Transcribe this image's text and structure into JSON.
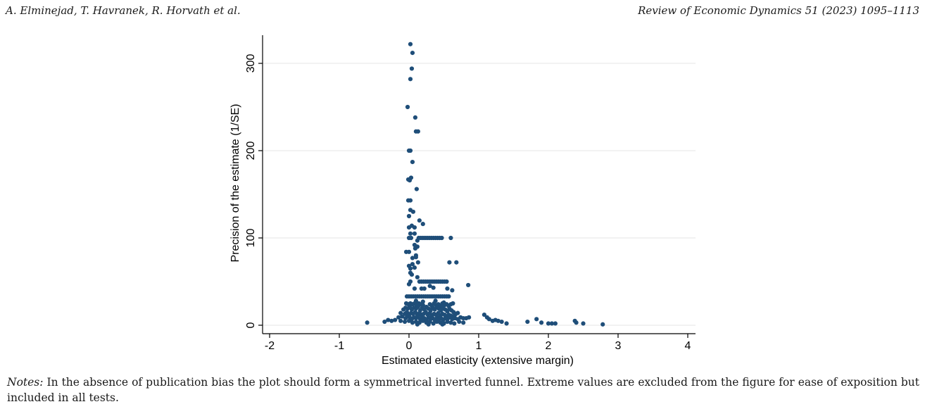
{
  "header": {
    "authors": "A. Elminejad, T. Havranek, R. Horvath et al.",
    "journal": "Review of Economic Dynamics 51 (2023) 1095–1113"
  },
  "notes": {
    "label": "Notes:",
    "text": "In the absence of publication bias the plot should form a symmetrical inverted funnel. Extreme values are excluded from the figure for ease of exposition but included in all tests."
  },
  "colors": {
    "points": "#1f4e79",
    "grid": "#e6e6e6",
    "axis": "#000000"
  },
  "chart_data": {
    "type": "scatter",
    "xlabel": "Estimated elasticity (extensive margin)",
    "ylabel": "Precision of the estimate (1/SE)",
    "xlim": [
      -2,
      4
    ],
    "ylim": [
      0,
      325
    ],
    "xticks": [
      "-2",
      "-1",
      "0",
      "1",
      "2",
      "3",
      "4"
    ],
    "yticks": [
      "0",
      "100",
      "200",
      "300"
    ],
    "grid": true,
    "points": [
      [
        0.02,
        322
      ],
      [
        0.05,
        312
      ],
      [
        0.04,
        294
      ],
      [
        0.02,
        282
      ],
      [
        -0.02,
        250
      ],
      [
        0.09,
        238
      ],
      [
        0.1,
        222
      ],
      [
        0.13,
        222
      ],
      [
        0.0,
        200
      ],
      [
        0.02,
        200
      ],
      [
        0.05,
        187
      ],
      [
        0.03,
        169
      ],
      [
        -0.01,
        167
      ],
      [
        0.01,
        166
      ],
      [
        0.11,
        156
      ],
      [
        -0.01,
        143
      ],
      [
        0.02,
        143
      ],
      [
        0.02,
        132
      ],
      [
        0.06,
        130
      ],
      [
        0.0,
        125
      ],
      [
        0.15,
        120
      ],
      [
        0.2,
        116
      ],
      [
        0.0,
        112
      ],
      [
        0.04,
        114
      ],
      [
        0.08,
        112
      ],
      [
        0.02,
        105
      ],
      [
        0.08,
        105
      ],
      [
        0.0,
        100
      ],
      [
        0.03,
        100
      ],
      [
        0.12,
        97
      ],
      [
        0.14,
        100
      ],
      [
        0.17,
        100
      ],
      [
        0.2,
        100
      ],
      [
        0.23,
        100
      ],
      [
        0.26,
        100
      ],
      [
        0.29,
        100
      ],
      [
        0.32,
        100
      ],
      [
        0.35,
        100
      ],
      [
        0.38,
        100
      ],
      [
        0.41,
        100
      ],
      [
        0.44,
        100
      ],
      [
        0.47,
        100
      ],
      [
        0.6,
        100
      ],
      [
        0.08,
        92
      ],
      [
        0.12,
        90
      ],
      [
        -0.04,
        84
      ],
      [
        0.0,
        84
      ],
      [
        0.09,
        88
      ],
      [
        0.1,
        80
      ],
      [
        0.05,
        77
      ],
      [
        0.1,
        78
      ],
      [
        0.13,
        72
      ],
      [
        0.58,
        72
      ],
      [
        0.68,
        72
      ],
      [
        0.0,
        68
      ],
      [
        0.02,
        65
      ],
      [
        0.05,
        70
      ],
      [
        0.08,
        66
      ],
      [
        0.02,
        60
      ],
      [
        0.04,
        58
      ],
      [
        0.12,
        55
      ],
      [
        0.02,
        50
      ],
      [
        0.0,
        47
      ],
      [
        0.15,
        50
      ],
      [
        0.18,
        50
      ],
      [
        0.21,
        50
      ],
      [
        0.24,
        50
      ],
      [
        0.27,
        50
      ],
      [
        0.3,
        50
      ],
      [
        0.33,
        50
      ],
      [
        0.36,
        50
      ],
      [
        0.39,
        50
      ],
      [
        0.42,
        50
      ],
      [
        0.45,
        50
      ],
      [
        0.48,
        50
      ],
      [
        0.51,
        50
      ],
      [
        0.54,
        50
      ],
      [
        0.85,
        46
      ],
      [
        0.08,
        42
      ],
      [
        0.18,
        42
      ],
      [
        0.22,
        42
      ],
      [
        0.3,
        45
      ],
      [
        0.35,
        43
      ],
      [
        0.55,
        42
      ],
      [
        0.62,
        40
      ],
      [
        -0.03,
        33
      ],
      [
        0.0,
        33
      ],
      [
        0.03,
        33
      ],
      [
        0.06,
        33
      ],
      [
        0.09,
        33
      ],
      [
        0.12,
        33
      ],
      [
        0.15,
        33
      ],
      [
        0.18,
        33
      ],
      [
        0.21,
        33
      ],
      [
        0.24,
        33
      ],
      [
        0.27,
        33
      ],
      [
        0.3,
        33
      ],
      [
        0.33,
        33
      ],
      [
        0.36,
        33
      ],
      [
        0.39,
        33
      ],
      [
        0.42,
        33
      ],
      [
        0.45,
        33
      ],
      [
        0.48,
        33
      ],
      [
        0.51,
        33
      ],
      [
        0.54,
        33
      ],
      [
        0.57,
        33
      ],
      [
        0.1,
        28
      ],
      [
        0.2,
        27
      ],
      [
        0.38,
        28
      ],
      [
        0.5,
        26
      ],
      [
        -0.04,
        25
      ],
      [
        -0.01,
        24
      ],
      [
        0.02,
        25
      ],
      [
        0.05,
        24
      ],
      [
        0.08,
        25
      ],
      [
        0.11,
        23
      ],
      [
        0.14,
        25
      ],
      [
        0.17,
        24
      ],
      [
        0.2,
        23
      ],
      [
        0.3,
        24
      ],
      [
        0.33,
        22
      ],
      [
        0.36,
        25
      ],
      [
        0.39,
        23
      ],
      [
        0.42,
        24
      ],
      [
        0.45,
        22
      ],
      [
        0.48,
        25
      ],
      [
        0.51,
        23
      ],
      [
        0.54,
        24
      ],
      [
        0.57,
        22
      ],
      [
        0.6,
        24
      ],
      [
        0.63,
        25
      ],
      [
        -0.08,
        18
      ],
      [
        -0.05,
        20
      ],
      [
        -0.02,
        19
      ],
      [
        0.01,
        21
      ],
      [
        0.04,
        18
      ],
      [
        0.07,
        20
      ],
      [
        0.1,
        19
      ],
      [
        0.13,
        21
      ],
      [
        0.16,
        17
      ],
      [
        0.19,
        20
      ],
      [
        0.22,
        18
      ],
      [
        0.25,
        21
      ],
      [
        0.28,
        19
      ],
      [
        0.31,
        17
      ],
      [
        0.34,
        20
      ],
      [
        0.37,
        18
      ],
      [
        0.4,
        21
      ],
      [
        0.43,
        19
      ],
      [
        0.46,
        17
      ],
      [
        0.49,
        20
      ],
      [
        0.52,
        18
      ],
      [
        0.55,
        16
      ],
      [
        0.58,
        19
      ],
      [
        0.61,
        17
      ],
      [
        0.64,
        15
      ],
      [
        0.67,
        13
      ],
      [
        0.7,
        14
      ],
      [
        -0.12,
        14
      ],
      [
        -0.06,
        13
      ],
      [
        -0.03,
        15
      ],
      [
        0.0,
        12
      ],
      [
        0.03,
        14
      ],
      [
        0.06,
        13
      ],
      [
        0.09,
        15
      ],
      [
        0.12,
        12
      ],
      [
        0.15,
        14
      ],
      [
        0.18,
        12
      ],
      [
        0.21,
        13
      ],
      [
        0.24,
        15
      ],
      [
        0.27,
        12
      ],
      [
        0.3,
        14
      ],
      [
        0.33,
        11
      ],
      [
        0.36,
        13
      ],
      [
        0.39,
        12
      ],
      [
        0.42,
        14
      ],
      [
        0.45,
        11
      ],
      [
        0.48,
        13
      ],
      [
        0.51,
        12
      ],
      [
        0.54,
        10
      ],
      [
        0.57,
        12
      ],
      [
        0.6,
        11
      ],
      [
        0.63,
        10
      ],
      [
        0.66,
        12
      ],
      [
        -0.15,
        9
      ],
      [
        -0.1,
        10
      ],
      [
        -0.05,
        8
      ],
      [
        -0.02,
        10
      ],
      [
        0.01,
        9
      ],
      [
        0.04,
        7
      ],
      [
        0.07,
        9
      ],
      [
        0.1,
        8
      ],
      [
        0.13,
        10
      ],
      [
        0.16,
        7
      ],
      [
        0.19,
        9
      ],
      [
        0.22,
        8
      ],
      [
        0.25,
        6
      ],
      [
        0.28,
        9
      ],
      [
        0.31,
        7
      ],
      [
        0.34,
        8
      ],
      [
        0.37,
        6
      ],
      [
        0.4,
        9
      ],
      [
        0.43,
        7
      ],
      [
        0.46,
        8
      ],
      [
        0.49,
        6
      ],
      [
        0.52,
        8
      ],
      [
        0.55,
        7
      ],
      [
        0.58,
        9
      ],
      [
        0.62,
        7
      ],
      [
        0.66,
        8
      ],
      [
        0.7,
        7
      ],
      [
        0.74,
        9
      ],
      [
        0.78,
        8
      ],
      [
        0.82,
        8
      ],
      [
        0.86,
        9
      ],
      [
        -0.2,
        6
      ],
      [
        -0.12,
        5
      ],
      [
        -0.06,
        4
      ],
      [
        0.0,
        5
      ],
      [
        0.05,
        3
      ],
      [
        0.1,
        4
      ],
      [
        0.15,
        3
      ],
      [
        0.2,
        5
      ],
      [
        0.25,
        3
      ],
      [
        0.3,
        4
      ],
      [
        0.35,
        2
      ],
      [
        0.4,
        4
      ],
      [
        0.45,
        3
      ],
      [
        0.5,
        2
      ],
      [
        0.55,
        4
      ],
      [
        0.6,
        3
      ],
      [
        0.65,
        2
      ],
      [
        0.72,
        4
      ],
      [
        0.78,
        3
      ],
      [
        0.12,
        1
      ],
      [
        0.28,
        1
      ],
      [
        0.48,
        1
      ],
      [
        -0.6,
        3
      ],
      [
        -0.35,
        4
      ],
      [
        -0.3,
        6
      ],
      [
        -0.25,
        5
      ],
      [
        1.08,
        12
      ],
      [
        1.12,
        9
      ],
      [
        1.15,
        7
      ],
      [
        1.2,
        5
      ],
      [
        1.24,
        6
      ],
      [
        1.28,
        5
      ],
      [
        1.33,
        4
      ],
      [
        1.4,
        2
      ],
      [
        1.7,
        4
      ],
      [
        1.83,
        7
      ],
      [
        1.9,
        3
      ],
      [
        2.0,
        2
      ],
      [
        2.05,
        2
      ],
      [
        2.1,
        2
      ],
      [
        2.38,
        5
      ],
      [
        2.4,
        3
      ],
      [
        2.5,
        2
      ],
      [
        2.78,
        1
      ]
    ]
  }
}
